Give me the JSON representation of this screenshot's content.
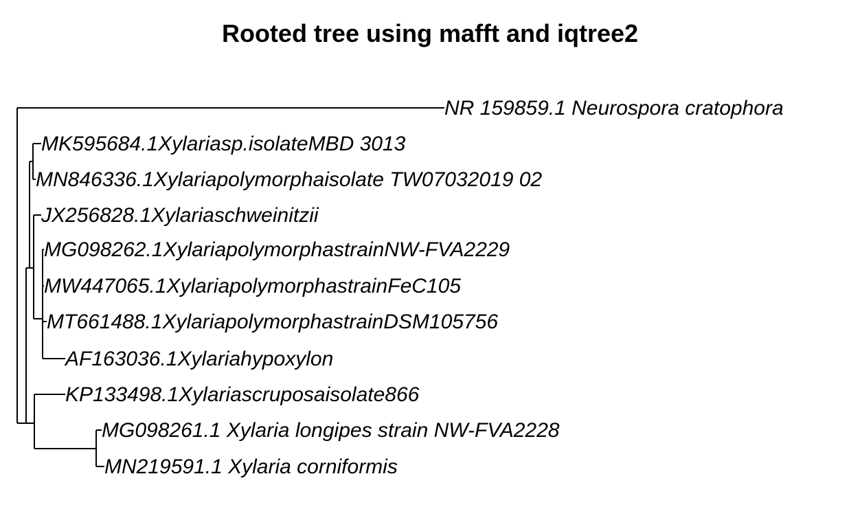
{
  "title": "Rooted tree using mafft and iqtree2",
  "tree": {
    "tips": [
      "NR 159859.1 Neurospora cratophora",
      "MK595684.1Xylariasp.isolateMBD 3013",
      "MN846336.1Xylariapolymorphaisolate TW07032019 02",
      "JX256828.1Xylariaschweinitzii",
      "MG098262.1XylariapolymorphastrainNW-FVA2229",
      "MW447065.1XylariapolymorphastrainFeC105",
      "MT661488.1XylariapolymorphastrainDSM105756",
      "AF163036.1Xylariahypoxylon",
      "KP133498.1Xylariascruposaisolate866",
      "MG098261.1 Xylaria longipes strain NW-FVA2228",
      "MN219591.1 Xylaria corniformis"
    ]
  }
}
